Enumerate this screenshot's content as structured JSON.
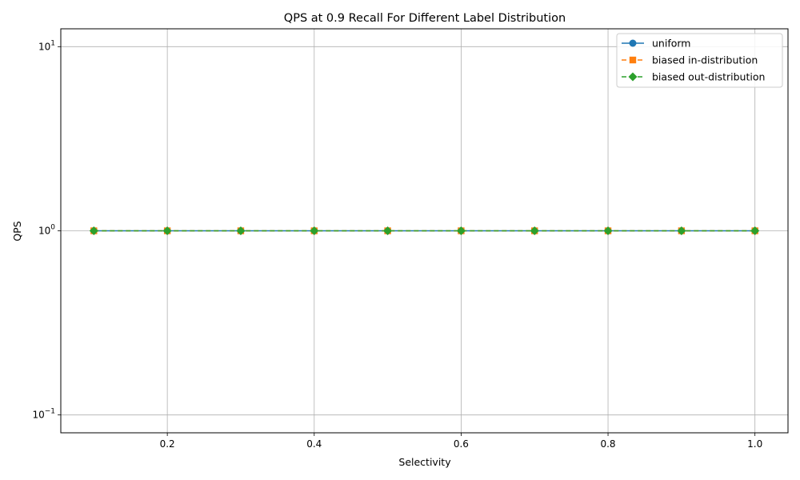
{
  "chart_data": {
    "type": "line",
    "title": "QPS at 0.9 Recall For Different Label Distribution",
    "xlabel": "Selectivity",
    "ylabel": "QPS",
    "yscale": "log",
    "xlim": [
      0.055,
      1.045
    ],
    "ylim": [
      0.08,
      12.5
    ],
    "x_ticks": [
      0.2,
      0.4,
      0.6,
      0.8,
      1.0
    ],
    "x_tick_labels": [
      "0.2",
      "0.4",
      "0.6",
      "0.8",
      "1.0"
    ],
    "y_ticks": [
      0.1,
      1,
      10
    ],
    "y_tick_bases": [
      "10",
      "10",
      "10"
    ],
    "y_tick_exponents": [
      "−1",
      "0",
      "1"
    ],
    "grid": true,
    "legend_position": "top-right",
    "x": [
      0.1,
      0.2,
      0.3,
      0.4,
      0.5,
      0.6,
      0.7,
      0.8,
      0.9,
      1.0
    ],
    "series": [
      {
        "name": "uniform",
        "values": [
          1,
          1,
          1,
          1,
          1,
          1,
          1,
          1,
          1,
          1
        ],
        "color": "#1f77b4",
        "marker": "circle",
        "linestyle": "solid"
      },
      {
        "name": "biased in-distribution",
        "values": [
          1,
          1,
          1,
          1,
          1,
          1,
          1,
          1,
          1,
          1
        ],
        "color": "#ff7f0e",
        "marker": "square",
        "linestyle": "dashed"
      },
      {
        "name": "biased out-distribution",
        "values": [
          1,
          1,
          1,
          1,
          1,
          1,
          1,
          1,
          1,
          1
        ],
        "color": "#2ca02c",
        "marker": "diamond",
        "linestyle": "dashed"
      }
    ]
  }
}
